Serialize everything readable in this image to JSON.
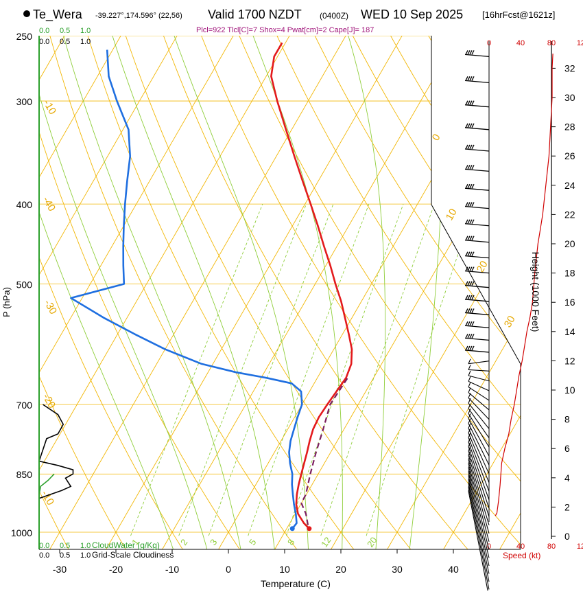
{
  "header": {
    "station_name": "Te_Wera",
    "station_coords": "-39.227°,174.596° (22,56)",
    "valid_time": "Valid 1700 NZDT",
    "utc_time": "(0400Z)",
    "date": "WED 10 Sep 2025",
    "forecast": "[16hrFcst@1621z]",
    "indices": "Plcl=922 Tlcl[C]=7 Shox=4 Pwat[cm]=2 Cape[J]= 187"
  },
  "colors": {
    "temperature": "#e31a1c",
    "dewpoint": "#1f6fe0",
    "parcel": "#7b1f5e",
    "isotherm": "#f2b705",
    "mixing_ratio": "#8fce3a",
    "cloud_water": "#2ca02c",
    "cloudiness": "#000000",
    "axis_red": "#d00000"
  },
  "chart_data": {
    "type": "line",
    "title": "",
    "xlabel": "Temperature (C)",
    "ylabel": "P (hPa)",
    "xlim": [
      -35,
      45
    ],
    "ylim_pressure": [
      1010,
      250
    ],
    "x_ticks": [
      -30,
      -20,
      -10,
      0,
      10,
      20,
      30,
      40
    ],
    "y_ticks": [
      1000,
      850,
      700,
      500,
      400,
      300,
      250
    ],
    "isotherm_labels": [
      "-10",
      "0",
      "10",
      "20",
      "30",
      "-40",
      "-30",
      "-20",
      "-10"
    ],
    "mixing_ratio_labels": [
      "1",
      "2",
      "3",
      "5",
      "8",
      "12",
      "20"
    ],
    "series": [
      {
        "key": "temperature",
        "p": [
          990,
          975,
          950,
          925,
          900,
          875,
          850,
          825,
          800,
          775,
          750,
          725,
          700,
          675,
          650,
          625,
          600,
          575,
          550,
          525,
          500,
          475,
          450,
          425,
          400,
          375,
          350,
          325,
          300,
          280,
          265,
          255
        ],
        "t": [
          14,
          12.5,
          10.5,
          9.2,
          8.3,
          7.6,
          7,
          6.4,
          5.8,
          5.1,
          4.5,
          4.3,
          4.5,
          4.8,
          5.1,
          4.6,
          3.2,
          1.1,
          -1.2,
          -3.6,
          -6.4,
          -9.2,
          -12.3,
          -15.5,
          -19,
          -22.8,
          -26.8,
          -31,
          -35.5,
          -39.1,
          -40.6,
          -40.6
        ]
      },
      {
        "key": "dewpoint",
        "p": [
          990,
          975,
          950,
          925,
          900,
          875,
          850,
          825,
          800,
          775,
          750,
          725,
          700,
          675,
          660,
          650,
          640,
          625,
          600,
          575,
          550,
          520,
          500,
          475,
          450,
          425,
          400,
          375,
          350,
          325,
          300,
          280,
          260
        ],
        "t": [
          11,
          11.2,
          10.1,
          8.8,
          7.6,
          6.4,
          5.4,
          3.9,
          2.6,
          1.7,
          1.1,
          0.5,
          0,
          -1.5,
          -4,
          -9,
          -15,
          -22,
          -30,
          -37,
          -44,
          -52,
          -44,
          -46,
          -48,
          -50,
          -52,
          -54,
          -56,
          -59,
          -64,
          -68,
          -71
        ]
      },
      {
        "key": "parcel",
        "p": [
          980,
          950,
          922,
          900,
          850,
          800,
          750,
          700,
          650
        ],
        "t": [
          13.4,
          11.9,
          10,
          9.9,
          8.6,
          7.4,
          6.3,
          5,
          5.4
        ]
      }
    ],
    "surface_temperature": 14,
    "surface_dewpoint": 11,
    "cloud_water": {
      "label": "CloudWater (g/Kg)",
      "ticks": [
        "0.0",
        "0.5",
        "1.0"
      ],
      "p": [
        1010,
        900,
        880,
        865,
        850
      ],
      "v": [
        0,
        0,
        0.02,
        0.12,
        0.2
      ]
    },
    "cloudiness": {
      "label": "Grid-Scale Cloudiness",
      "ticks": [
        "0.0",
        "0.5",
        "1.0"
      ],
      "p": [
        700,
        720,
        740,
        760,
        770,
        820,
        830,
        840,
        850,
        860,
        880,
        890,
        910
      ],
      "v": [
        0.05,
        0.25,
        0.32,
        0.25,
        0.1,
        0,
        0.25,
        0.45,
        0.45,
        0.35,
        0.42,
        0.3,
        0
      ]
    },
    "wind": {
      "xlabel": "Speed (kt)",
      "ticks": [
        "0",
        "40",
        "80",
        "120"
      ],
      "height_label": "Height (1000 Feet)",
      "height_ticks": [
        "0",
        "2",
        "4",
        "6",
        "8",
        "10",
        "12",
        "14",
        "16",
        "18",
        "20",
        "22",
        "24",
        "26",
        "28",
        "30",
        "32"
      ],
      "speed_kt": [
        8,
        10,
        12,
        14,
        16,
        20,
        25,
        28,
        32,
        35,
        38,
        42,
        45,
        48,
        52,
        55,
        58,
        60,
        62,
        65,
        68,
        70,
        72,
        74,
        76,
        78,
        80,
        80,
        81
      ],
      "height_kft": [
        1.4,
        1.6,
        2.4,
        3.5,
        5,
        6,
        7,
        8,
        9,
        10,
        11,
        12,
        13,
        14,
        15,
        16,
        18,
        19,
        20,
        21,
        22,
        23,
        24,
        25,
        26,
        28,
        30,
        32,
        33
      ]
    }
  }
}
